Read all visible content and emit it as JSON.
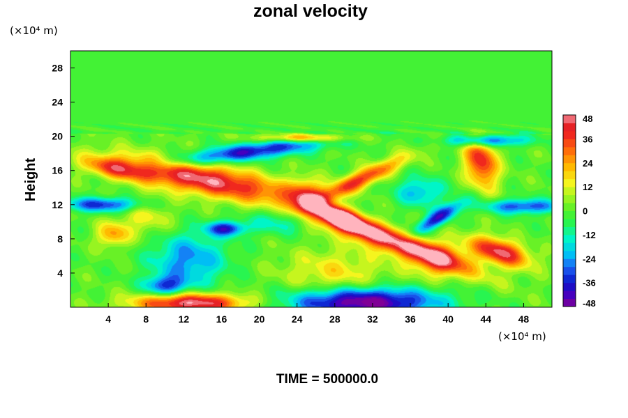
{
  "chart_data": {
    "type": "heatmap",
    "title": "zonal velocity",
    "ylabel": "Height",
    "y_unit": "(×10⁴ m)",
    "x_unit": "(×10⁴ m)",
    "xlim": [
      0,
      51
    ],
    "ylim": [
      0,
      30
    ],
    "x_ticks": [
      4,
      8,
      12,
      16,
      20,
      24,
      28,
      32,
      36,
      40,
      44,
      48
    ],
    "y_ticks": [
      4,
      8,
      12,
      16,
      20,
      24,
      28
    ],
    "colorbar": {
      "range": [
        -48,
        48
      ],
      "step": 4,
      "labels": [
        48,
        36,
        24,
        12,
        0,
        -12,
        -24,
        -36,
        -48
      ]
    },
    "features": [
      {
        "x": 14,
        "y": 15,
        "sx": 6.5,
        "sy": 1.3,
        "value": 46,
        "angle": -12
      },
      {
        "x": 5,
        "y": 16.2,
        "sx": 2.5,
        "sy": 0.8,
        "value": 30,
        "angle": -10
      },
      {
        "x": 33.5,
        "y": 8,
        "sx": 6.5,
        "sy": 1.0,
        "value": 50,
        "angle": -22
      },
      {
        "x": 28.5,
        "y": 10.5,
        "sx": 2.0,
        "sy": 0.8,
        "value": 45,
        "angle": -25
      },
      {
        "x": 30.5,
        "y": 14.8,
        "sx": 4.0,
        "sy": 0.7,
        "value": 38,
        "angle": 28
      },
      {
        "x": 25,
        "y": 13.2,
        "sx": 1.3,
        "sy": 1.3,
        "value": 28,
        "angle": 0
      },
      {
        "x": 45.5,
        "y": 6.5,
        "sx": 2.3,
        "sy": 1.0,
        "value": 46,
        "angle": -20
      },
      {
        "x": 43.5,
        "y": 17,
        "sx": 1.2,
        "sy": 2.2,
        "value": 40,
        "angle": 10
      },
      {
        "x": 12.8,
        "y": 0.5,
        "sx": 4.2,
        "sy": 0.8,
        "value": 50,
        "angle": 0
      },
      {
        "x": 4.5,
        "y": 8.5,
        "sx": 1.2,
        "sy": 1.0,
        "value": 24,
        "angle": 0
      },
      {
        "x": 39,
        "y": 5.5,
        "sx": 2.0,
        "sy": 1.5,
        "value": 22,
        "angle": 0
      },
      {
        "x": 25,
        "y": 19.8,
        "sx": 3.5,
        "sy": 0.35,
        "value": 30,
        "angle": 0
      },
      {
        "x": 31,
        "y": 0.6,
        "sx": 5.5,
        "sy": 1.2,
        "value": -52,
        "angle": 0
      },
      {
        "x": 19,
        "y": 18.2,
        "sx": 6.0,
        "sy": 0.7,
        "value": -38,
        "angle": 8
      },
      {
        "x": 3.5,
        "y": 12,
        "sx": 3.0,
        "sy": 0.6,
        "value": -34,
        "angle": 0
      },
      {
        "x": 12.5,
        "y": 5.5,
        "sx": 2.8,
        "sy": 2.2,
        "value": -26,
        "angle": 0
      },
      {
        "x": 16.5,
        "y": 9.2,
        "sx": 1.5,
        "sy": 0.6,
        "value": -36,
        "angle": 0
      },
      {
        "x": 39,
        "y": 10.5,
        "sx": 2.2,
        "sy": 0.6,
        "value": -38,
        "angle": 35
      },
      {
        "x": 48,
        "y": 11.8,
        "sx": 3.0,
        "sy": 0.6,
        "value": -32,
        "angle": 0
      },
      {
        "x": 44,
        "y": 19.5,
        "sx": 3.0,
        "sy": 0.5,
        "value": -34,
        "angle": 0
      },
      {
        "x": 10,
        "y": 2.5,
        "sx": 1.5,
        "sy": 0.8,
        "value": -30,
        "angle": 0
      },
      {
        "x": 37,
        "y": 13.5,
        "sx": 1.8,
        "sy": 1.2,
        "value": -22,
        "angle": 0
      },
      {
        "x": 22,
        "y": 10,
        "sx": 2.0,
        "sy": 1.0,
        "value": -16,
        "angle": 0
      },
      {
        "x": 8,
        "y": 10.5,
        "sx": 2.0,
        "sy": 1.5,
        "value": 14,
        "angle": 0
      },
      {
        "x": 28,
        "y": 4,
        "sx": 4.0,
        "sy": 2.0,
        "value": 16,
        "angle": 0
      }
    ]
  },
  "footer": {
    "time_label": "TIME = 500000.0"
  }
}
